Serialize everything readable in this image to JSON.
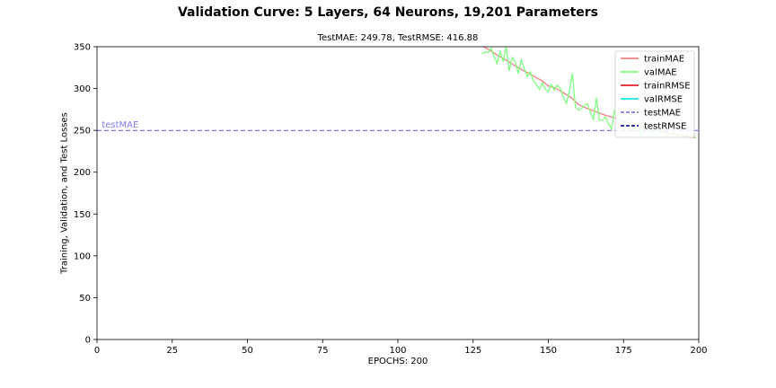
{
  "chart_data": {
    "type": "line",
    "title": "Validation Curve: 5 Layers, 64 Neurons, 19,201 Parameters",
    "subtitle": "TestMAE: 249.78, TestRMSE: 416.88",
    "xlabel": "EPOCHS: 200",
    "ylabel": "Training, Validation, and Test Losses",
    "xlim": [
      0,
      200
    ],
    "ylim": [
      0,
      350
    ],
    "xticks": [
      0,
      25,
      50,
      75,
      100,
      125,
      150,
      175,
      200
    ],
    "yticks": [
      0,
      50,
      100,
      150,
      200,
      250,
      300,
      350
    ],
    "grid": false,
    "legend_position": "upper-right",
    "series": [
      {
        "name": "trainMAE",
        "color": "#f08080",
        "x": [
          128,
          130,
          133,
          136,
          139,
          142,
          145,
          148,
          150,
          152,
          155,
          158,
          160,
          163,
          166,
          169,
          172,
          175,
          178,
          181,
          184,
          187,
          190,
          193,
          196,
          199
        ],
        "y": [
          351,
          347,
          340,
          334,
          327,
          321,
          315,
          309,
          303,
          301,
          295,
          288,
          281,
          276,
          272,
          268,
          265,
          261,
          258,
          255,
          252,
          249,
          247,
          245,
          243,
          241
        ]
      },
      {
        "name": "valMAE",
        "color": "#7fff7f",
        "x": [
          128,
          129,
          130,
          131,
          132,
          133,
          134,
          135,
          136,
          137,
          138,
          139,
          140,
          141,
          142,
          143,
          144,
          145,
          146,
          147,
          148,
          149,
          150,
          151,
          152,
          153,
          154,
          155,
          156,
          157,
          158,
          159,
          160,
          161,
          162,
          163,
          164,
          165,
          166,
          167,
          168,
          169,
          170,
          171,
          172,
          173,
          174,
          175,
          176,
          177,
          178,
          179,
          180,
          181,
          182,
          183,
          184,
          185,
          186,
          187,
          188,
          189,
          190,
          191,
          192,
          193,
          194,
          195,
          196,
          197,
          198,
          199
        ],
        "y": [
          341,
          344,
          343,
          348,
          338,
          330,
          344,
          332,
          351,
          321,
          337,
          333,
          318,
          334,
          324,
          314,
          320,
          309,
          305,
          299,
          307,
          299,
          296,
          305,
          298,
          304,
          300,
          290,
          282,
          297,
          318,
          278,
          274,
          276,
          280,
          282,
          271,
          263,
          289,
          262,
          262,
          266,
          258,
          252,
          274,
          265,
          261,
          255,
          262,
          266,
          253,
          250,
          258,
          244,
          255,
          252,
          248,
          245,
          252,
          247,
          250,
          245,
          244,
          248,
          246,
          243,
          246,
          244,
          245,
          242,
          244,
          241
        ]
      },
      {
        "name": "trainRMSE",
        "color": "#e8222e",
        "x": [],
        "y": []
      },
      {
        "name": "valRMSE",
        "color": "#22e8e8",
        "x": [],
        "y": []
      },
      {
        "name": "testMAE",
        "color": "#7b7bf0",
        "style": "dashed",
        "constant": 249.78
      },
      {
        "name": "testRMSE",
        "color": "#1a1a9e",
        "style": "dashed",
        "constant": 416.88
      }
    ],
    "annotations": [
      {
        "text": "testMAE",
        "x": 1,
        "y": 251,
        "color": "#7b7bf0"
      }
    ]
  }
}
